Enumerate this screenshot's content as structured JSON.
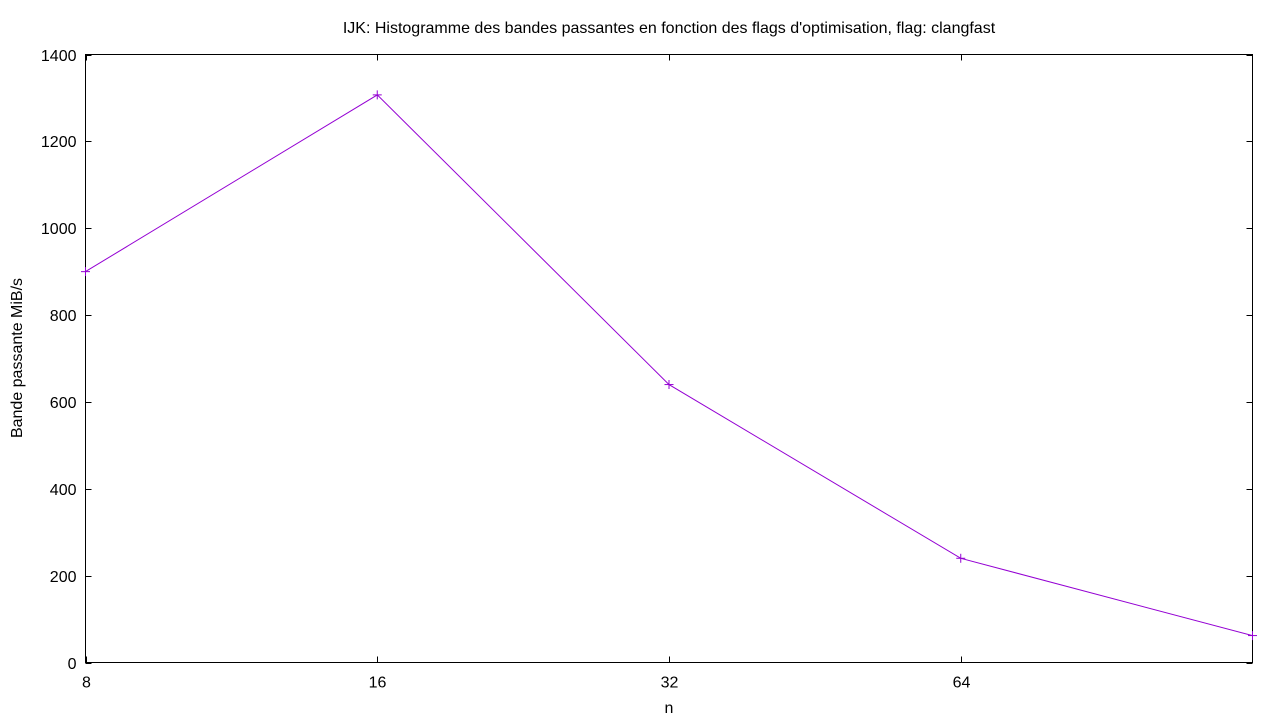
{
  "chart_data": {
    "type": "line",
    "title": "IJK: Histogramme des bandes passantes en fonction des flags d'optimisation, flag: clangfast",
    "xlabel": "n",
    "ylabel": "Bande passante MiB/s",
    "x_scale": "log2",
    "xlim": [
      8,
      128
    ],
    "ylim": [
      0,
      1400
    ],
    "x_ticks": [
      8,
      16,
      32,
      64
    ],
    "x_tick_labels": [
      "8",
      "16",
      "32",
      "64"
    ],
    "y_ticks": [
      0,
      200,
      400,
      600,
      800,
      1000,
      1200,
      1400
    ],
    "y_tick_labels": [
      "0",
      "200",
      "400",
      "600",
      "800",
      "1000",
      "1200",
      "1400"
    ],
    "grid": false,
    "series": [
      {
        "x": [
          8,
          16,
          32,
          64,
          128
        ],
        "y": [
          900,
          1307,
          640,
          240,
          62
        ],
        "color": "#9400d3",
        "marker": "plus"
      }
    ]
  }
}
